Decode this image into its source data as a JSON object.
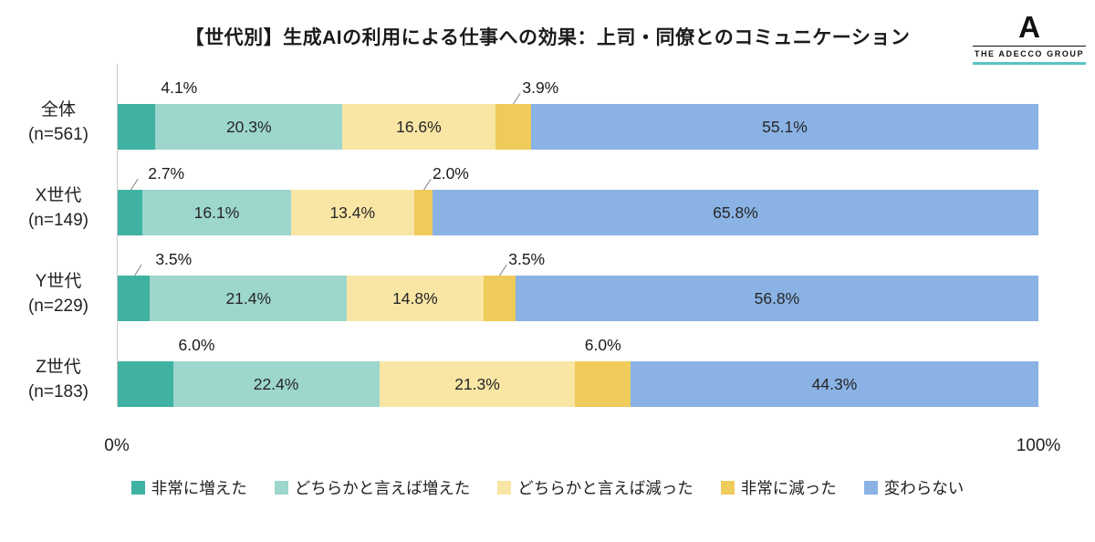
{
  "title": "【世代別】生成AIの利用による仕事への効果：上司・同僚とのコミュニケーション",
  "logo": {
    "letter": "A",
    "text": "THE ADECCO GROUP",
    "underline_color": "#59c3c5"
  },
  "axis": {
    "min": "0%",
    "max": "100%"
  },
  "chart_data": {
    "type": "bar",
    "stacked": true,
    "orientation": "horizontal",
    "xlim": [
      0,
      100
    ],
    "grid": false,
    "legend_position": "bottom",
    "categories": [
      {
        "label": "全体",
        "n": "(n=561)"
      },
      {
        "label": "X世代",
        "n": "(n=149)"
      },
      {
        "label": "Y世代",
        "n": "(n=229)"
      },
      {
        "label": "Z世代",
        "n": "(n=183)"
      }
    ],
    "series": [
      {
        "name": "非常に増えた",
        "color": "#3fb2a2",
        "values": [
          4.1,
          2.7,
          3.5,
          6.0
        ]
      },
      {
        "name": "どちらかと言えば増えた",
        "color": "#9cd6cc",
        "values": [
          20.3,
          16.1,
          21.4,
          22.4
        ]
      },
      {
        "name": "どちらかと言えば減った",
        "color": "#f9e6a5",
        "values": [
          16.6,
          13.4,
          14.8,
          21.3
        ]
      },
      {
        "name": "非常に減った",
        "color": "#efcb5c",
        "values": [
          3.9,
          2.0,
          3.5,
          6.0
        ]
      },
      {
        "name": "変わらない",
        "color": "#8ab2e5",
        "values": [
          55.1,
          65.8,
          56.8,
          44.3
        ]
      }
    ],
    "callout_series": [
      0,
      3
    ],
    "leaders": [
      [
        false,
        true
      ],
      [
        true,
        true
      ],
      [
        true,
        true
      ],
      [
        false,
        false
      ]
    ]
  }
}
